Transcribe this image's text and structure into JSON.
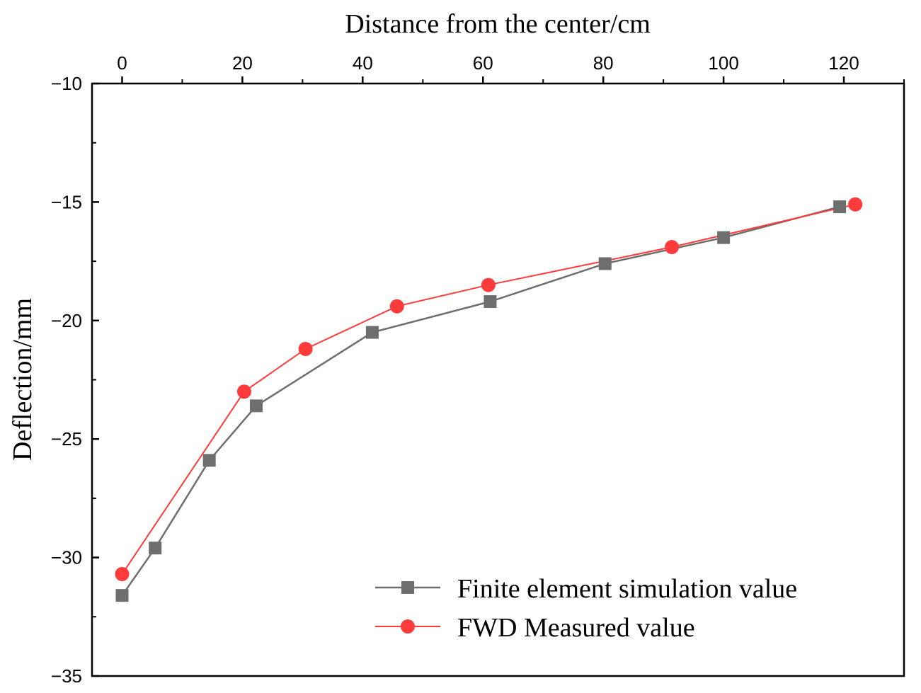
{
  "chart_data": {
    "type": "line",
    "title": "",
    "xlabel": "Distance from the center/cm",
    "ylabel": "Deflection/mm",
    "xlim": [
      -5,
      130
    ],
    "ylim": [
      -35,
      -10
    ],
    "xticks": [
      0,
      20,
      40,
      60,
      80,
      100,
      120
    ],
    "yticks": [
      -35,
      -30,
      -25,
      -20,
      -15,
      -10
    ],
    "x_axis_position": "top",
    "grid": false,
    "legend_position": "bottom-right",
    "series": [
      {
        "name": "Finite element simulation value",
        "marker": "square",
        "color": "#6e6e6e",
        "x": [
          0,
          5.5,
          14.5,
          22.3,
          41.6,
          61.2,
          80.3,
          100,
          119.3
        ],
        "y": [
          -31.6,
          -29.6,
          -25.9,
          -23.6,
          -20.5,
          -19.2,
          -17.6,
          -16.5,
          -15.2
        ]
      },
      {
        "name": "FWD Measured value",
        "marker": "circle",
        "color": "#ff3b3b",
        "x": [
          0,
          20.3,
          30.5,
          45.7,
          60.9,
          91.4,
          121.9
        ],
        "y": [
          -30.7,
          -23.0,
          -21.2,
          -19.4,
          -18.5,
          -16.9,
          -15.1
        ]
      }
    ]
  }
}
